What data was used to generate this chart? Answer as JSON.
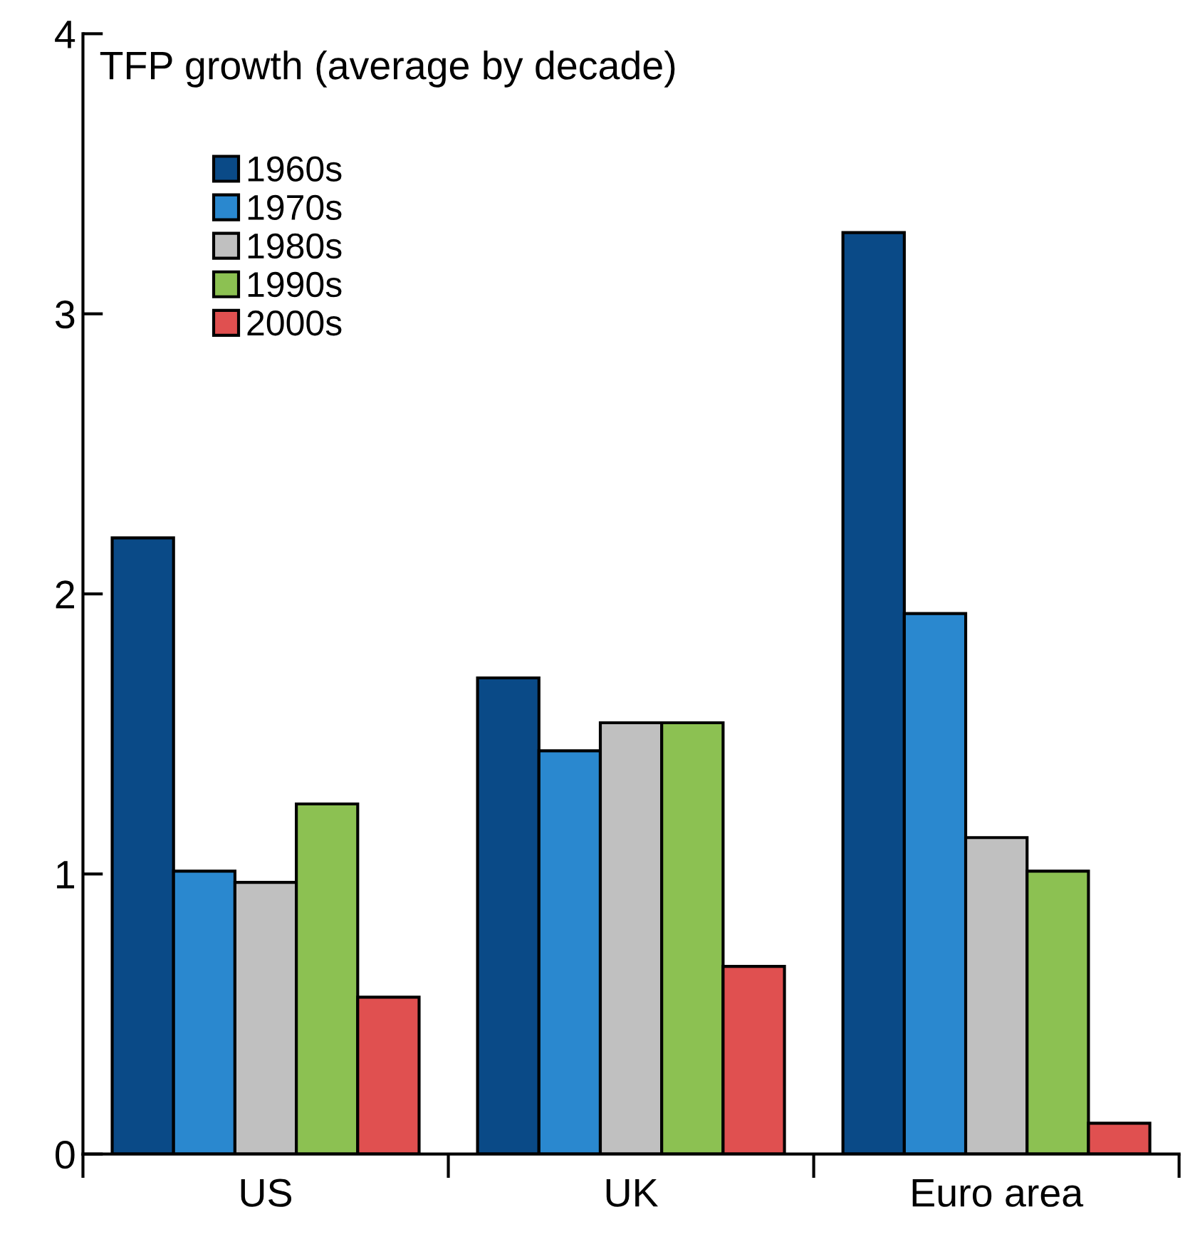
{
  "chart_data": {
    "type": "bar",
    "title": "TFP growth (average by decade)",
    "categories": [
      "US",
      "UK",
      "Euro area"
    ],
    "series": [
      {
        "name": "1960s",
        "color": "#0a4a87",
        "values": [
          2.2,
          1.7,
          3.29
        ]
      },
      {
        "name": "1970s",
        "color": "#2a88cf",
        "values": [
          1.01,
          1.44,
          1.93
        ]
      },
      {
        "name": "1980s",
        "color": "#c0c0c0",
        "values": [
          0.97,
          1.54,
          1.13
        ]
      },
      {
        "name": "1990s",
        "color": "#8cc152",
        "values": [
          1.25,
          1.54,
          1.01
        ]
      },
      {
        "name": "2000s",
        "color": "#e05050",
        "values": [
          0.56,
          0.67,
          0.11
        ]
      }
    ],
    "ylim": [
      0,
      4
    ],
    "yticks": [
      0,
      1,
      2,
      3,
      4
    ],
    "grid": false,
    "legend": "top left"
  }
}
